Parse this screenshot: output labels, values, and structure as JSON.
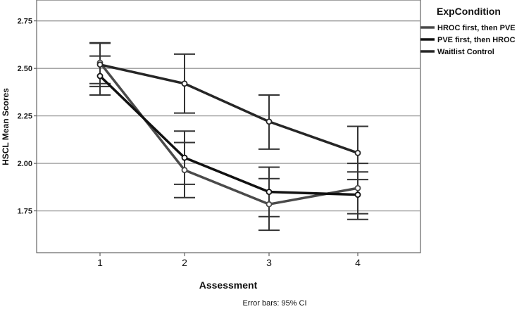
{
  "chart_data": {
    "type": "line",
    "ylabel": "HSCL Mean Scores",
    "xlabel": "Assessment",
    "footnote": "Error bars: 95% CI",
    "categories": [
      "1",
      "2",
      "3",
      "4"
    ],
    "ylim": [
      1.53,
      2.86
    ],
    "yticks": [
      1.75,
      2.0,
      2.25,
      2.5,
      2.75
    ],
    "ytick_labels": [
      "1.75",
      "2.00",
      "2.25",
      "2.50",
      "2.75"
    ],
    "grid": true,
    "legend": {
      "title": "ExpCondition",
      "position": "top-right",
      "entries": [
        "HROC first, then PVE",
        "PVE first, then HROC",
        "Waitlist Control"
      ]
    },
    "series": [
      {
        "name": "HROC first, then PVE",
        "color": "#4a4a4a",
        "values": [
          2.53,
          1.965,
          1.785,
          1.87
        ],
        "ci_low": [
          2.42,
          1.82,
          1.648,
          1.735
        ],
        "ci_high": [
          2.635,
          2.11,
          1.92,
          2.0
        ]
      },
      {
        "name": "PVE first, then HROC",
        "color": "#111111",
        "values": [
          2.46,
          2.03,
          1.85,
          1.835
        ],
        "ci_low": [
          2.36,
          1.89,
          1.72,
          1.705
        ],
        "ci_high": [
          2.565,
          2.17,
          1.98,
          1.955
        ]
      },
      {
        "name": "Waitlist Control",
        "color": "#262626",
        "values": [
          2.52,
          2.42,
          2.22,
          2.055
        ],
        "ci_low": [
          2.405,
          2.265,
          2.075,
          1.915
        ],
        "ci_high": [
          2.632,
          2.575,
          2.36,
          2.195
        ]
      }
    ]
  }
}
